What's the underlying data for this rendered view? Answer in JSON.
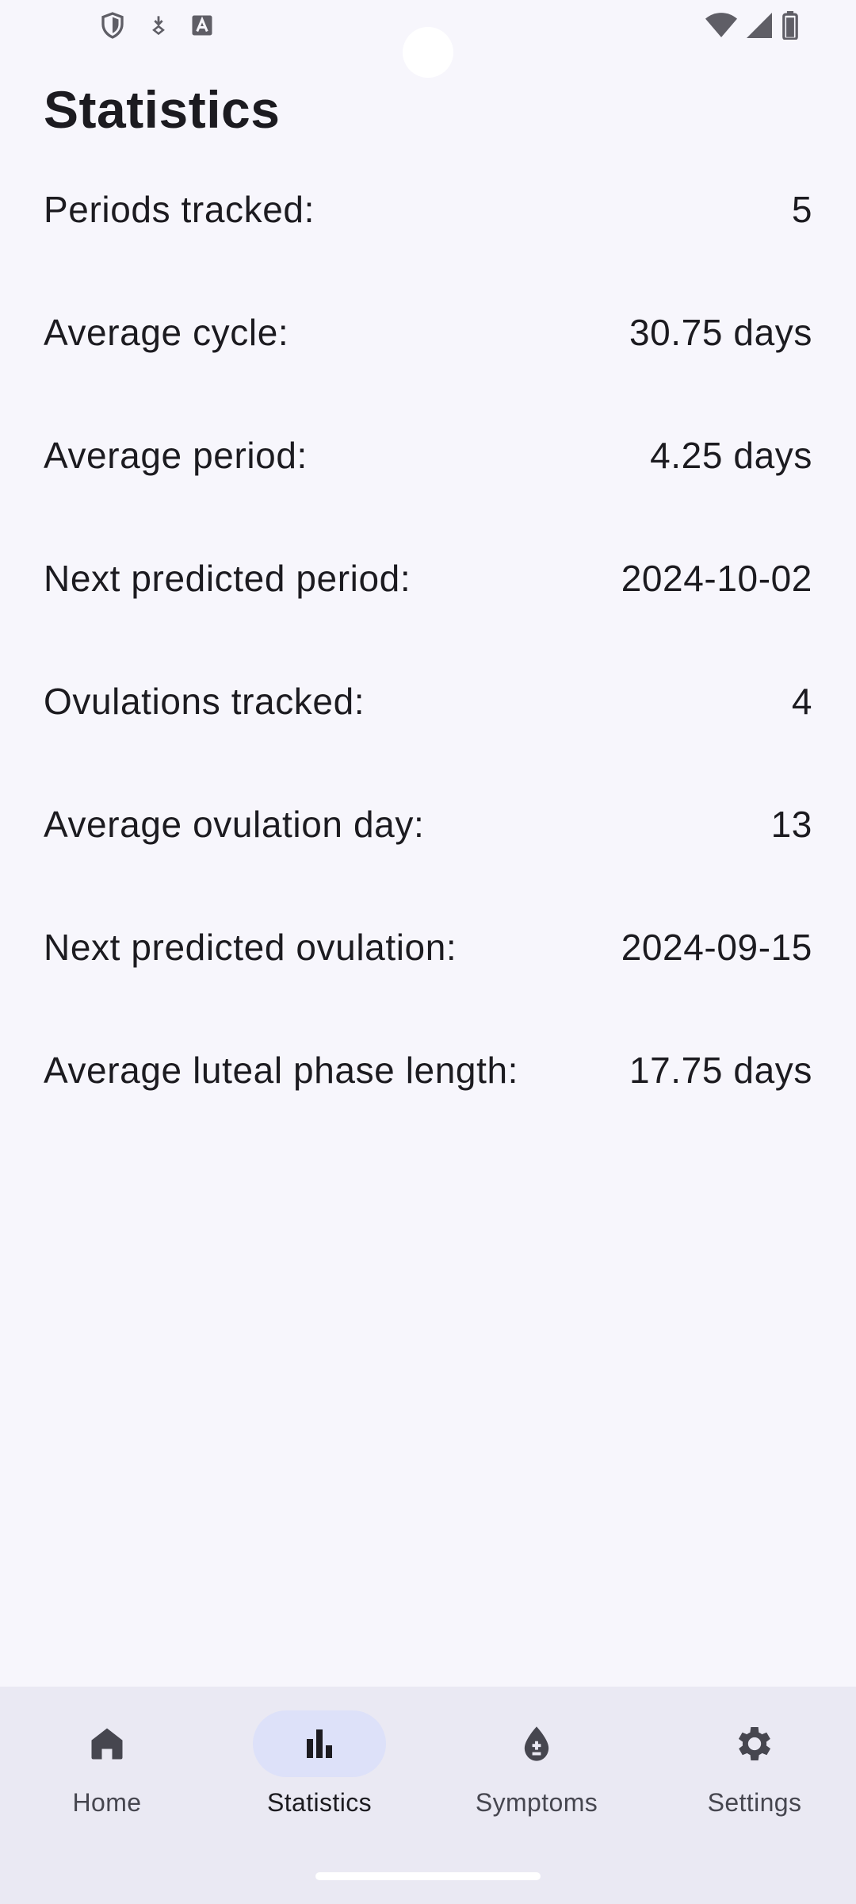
{
  "page": {
    "title": "Statistics"
  },
  "stats": [
    {
      "label": "Periods tracked:",
      "value": "5"
    },
    {
      "label": "Average cycle:",
      "value": "30.75 days"
    },
    {
      "label": "Average period:",
      "value": "4.25 days"
    },
    {
      "label": "Next predicted period:",
      "value": "2024-10-02"
    },
    {
      "label": "Ovulations tracked:",
      "value": "4"
    },
    {
      "label": "Average ovulation day:",
      "value": "13"
    },
    {
      "label": "Next predicted ovulation:",
      "value": "2024-09-15"
    },
    {
      "label": "Average luteal phase length:",
      "value": "17.75 days"
    }
  ],
  "nav": {
    "items": [
      {
        "label": "Home",
        "icon": "home-icon"
      },
      {
        "label": "Statistics",
        "icon": "bar-chart-icon",
        "active": true
      },
      {
        "label": "Symptoms",
        "icon": "drop-plus-minus-icon"
      },
      {
        "label": "Settings",
        "icon": "gear-icon"
      }
    ]
  },
  "colors": {
    "background": "#f7f6fc",
    "navbar": "#eae9f3",
    "active_indicator": "#dde1f9",
    "text": "#1c1b20"
  }
}
